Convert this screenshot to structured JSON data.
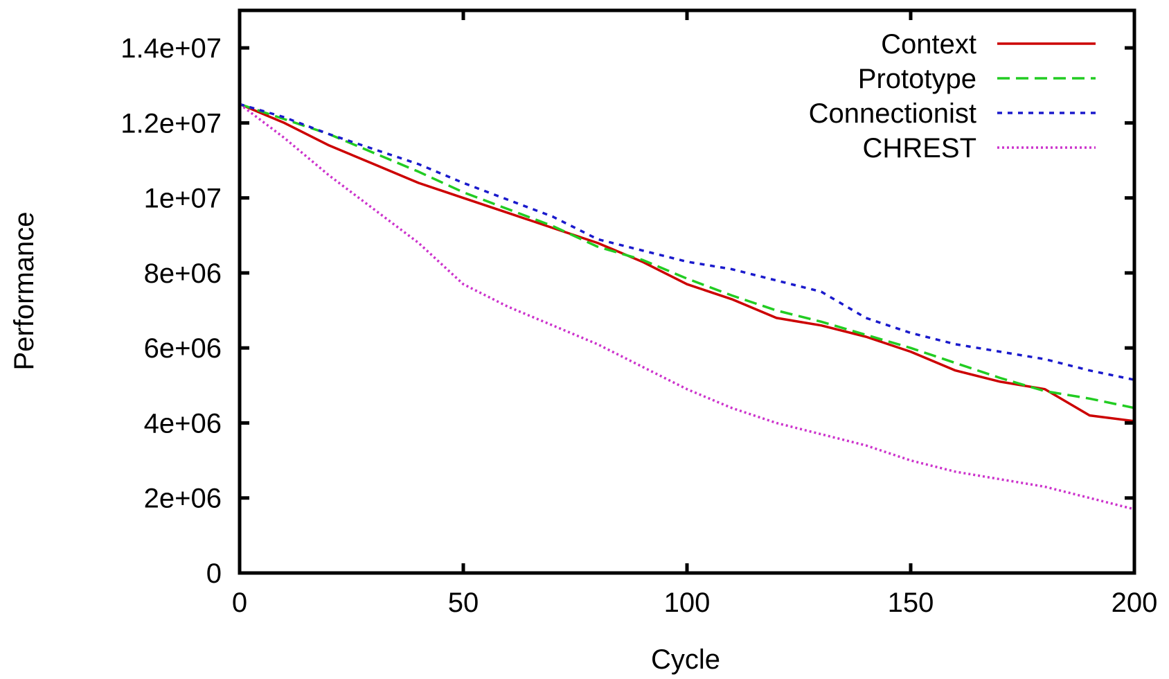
{
  "chart_data": {
    "type": "line",
    "title": "",
    "xlabel": "Cycle",
    "ylabel": "Performance",
    "xlim": [
      0,
      200
    ],
    "ylim": [
      0,
      15000000
    ],
    "xticks": [
      0,
      50,
      100,
      150,
      200
    ],
    "xtick_labels": [
      "0",
      "50",
      "100",
      "150",
      "200"
    ],
    "yticks": [
      0,
      2000000,
      4000000,
      6000000,
      8000000,
      10000000,
      12000000,
      14000000
    ],
    "ytick_labels": [
      "0",
      "2e+06",
      "4e+06",
      "6e+06",
      "8e+06",
      "1e+07",
      "1.2e+07",
      "1.4e+07"
    ],
    "grid": false,
    "legend_position": "top-right",
    "x": [
      0,
      10,
      20,
      30,
      40,
      50,
      60,
      70,
      80,
      90,
      100,
      110,
      120,
      130,
      140,
      150,
      160,
      170,
      180,
      190,
      200
    ],
    "series": [
      {
        "name": "Context",
        "color": "#cc0000",
        "dash": "solid",
        "values": [
          12500000,
          12000000,
          11400000,
          10900000,
          10400000,
          10000000,
          9600000,
          9200000,
          8800000,
          8300000,
          7700000,
          7300000,
          6800000,
          6600000,
          6300000,
          5900000,
          5400000,
          5100000,
          4900000,
          4200000,
          4050000
        ]
      },
      {
        "name": "Prototype",
        "color": "#22cc22",
        "dash": "dashed",
        "values": [
          12500000,
          12100000,
          11700000,
          11200000,
          10700000,
          10150000,
          9700000,
          9250000,
          8700000,
          8350000,
          7850000,
          7400000,
          7000000,
          6700000,
          6350000,
          6000000,
          5600000,
          5200000,
          4850000,
          4650000,
          4400000
        ]
      },
      {
        "name": "Connectionist",
        "color": "#1a1acc",
        "dash": "dotted",
        "values": [
          12500000,
          12150000,
          11700000,
          11300000,
          10900000,
          10400000,
          9950000,
          9500000,
          8900000,
          8600000,
          8300000,
          8100000,
          7800000,
          7500000,
          6800000,
          6400000,
          6100000,
          5900000,
          5700000,
          5400000,
          5150000
        ]
      },
      {
        "name": "CHREST",
        "color": "#cc33cc",
        "dash": "fine-dotted",
        "values": [
          12500000,
          11600000,
          10600000,
          9700000,
          8800000,
          7700000,
          7100000,
          6600000,
          6100000,
          5500000,
          4900000,
          4400000,
          4000000,
          3700000,
          3400000,
          3000000,
          2700000,
          2500000,
          2300000,
          2000000,
          1700000
        ]
      }
    ]
  }
}
